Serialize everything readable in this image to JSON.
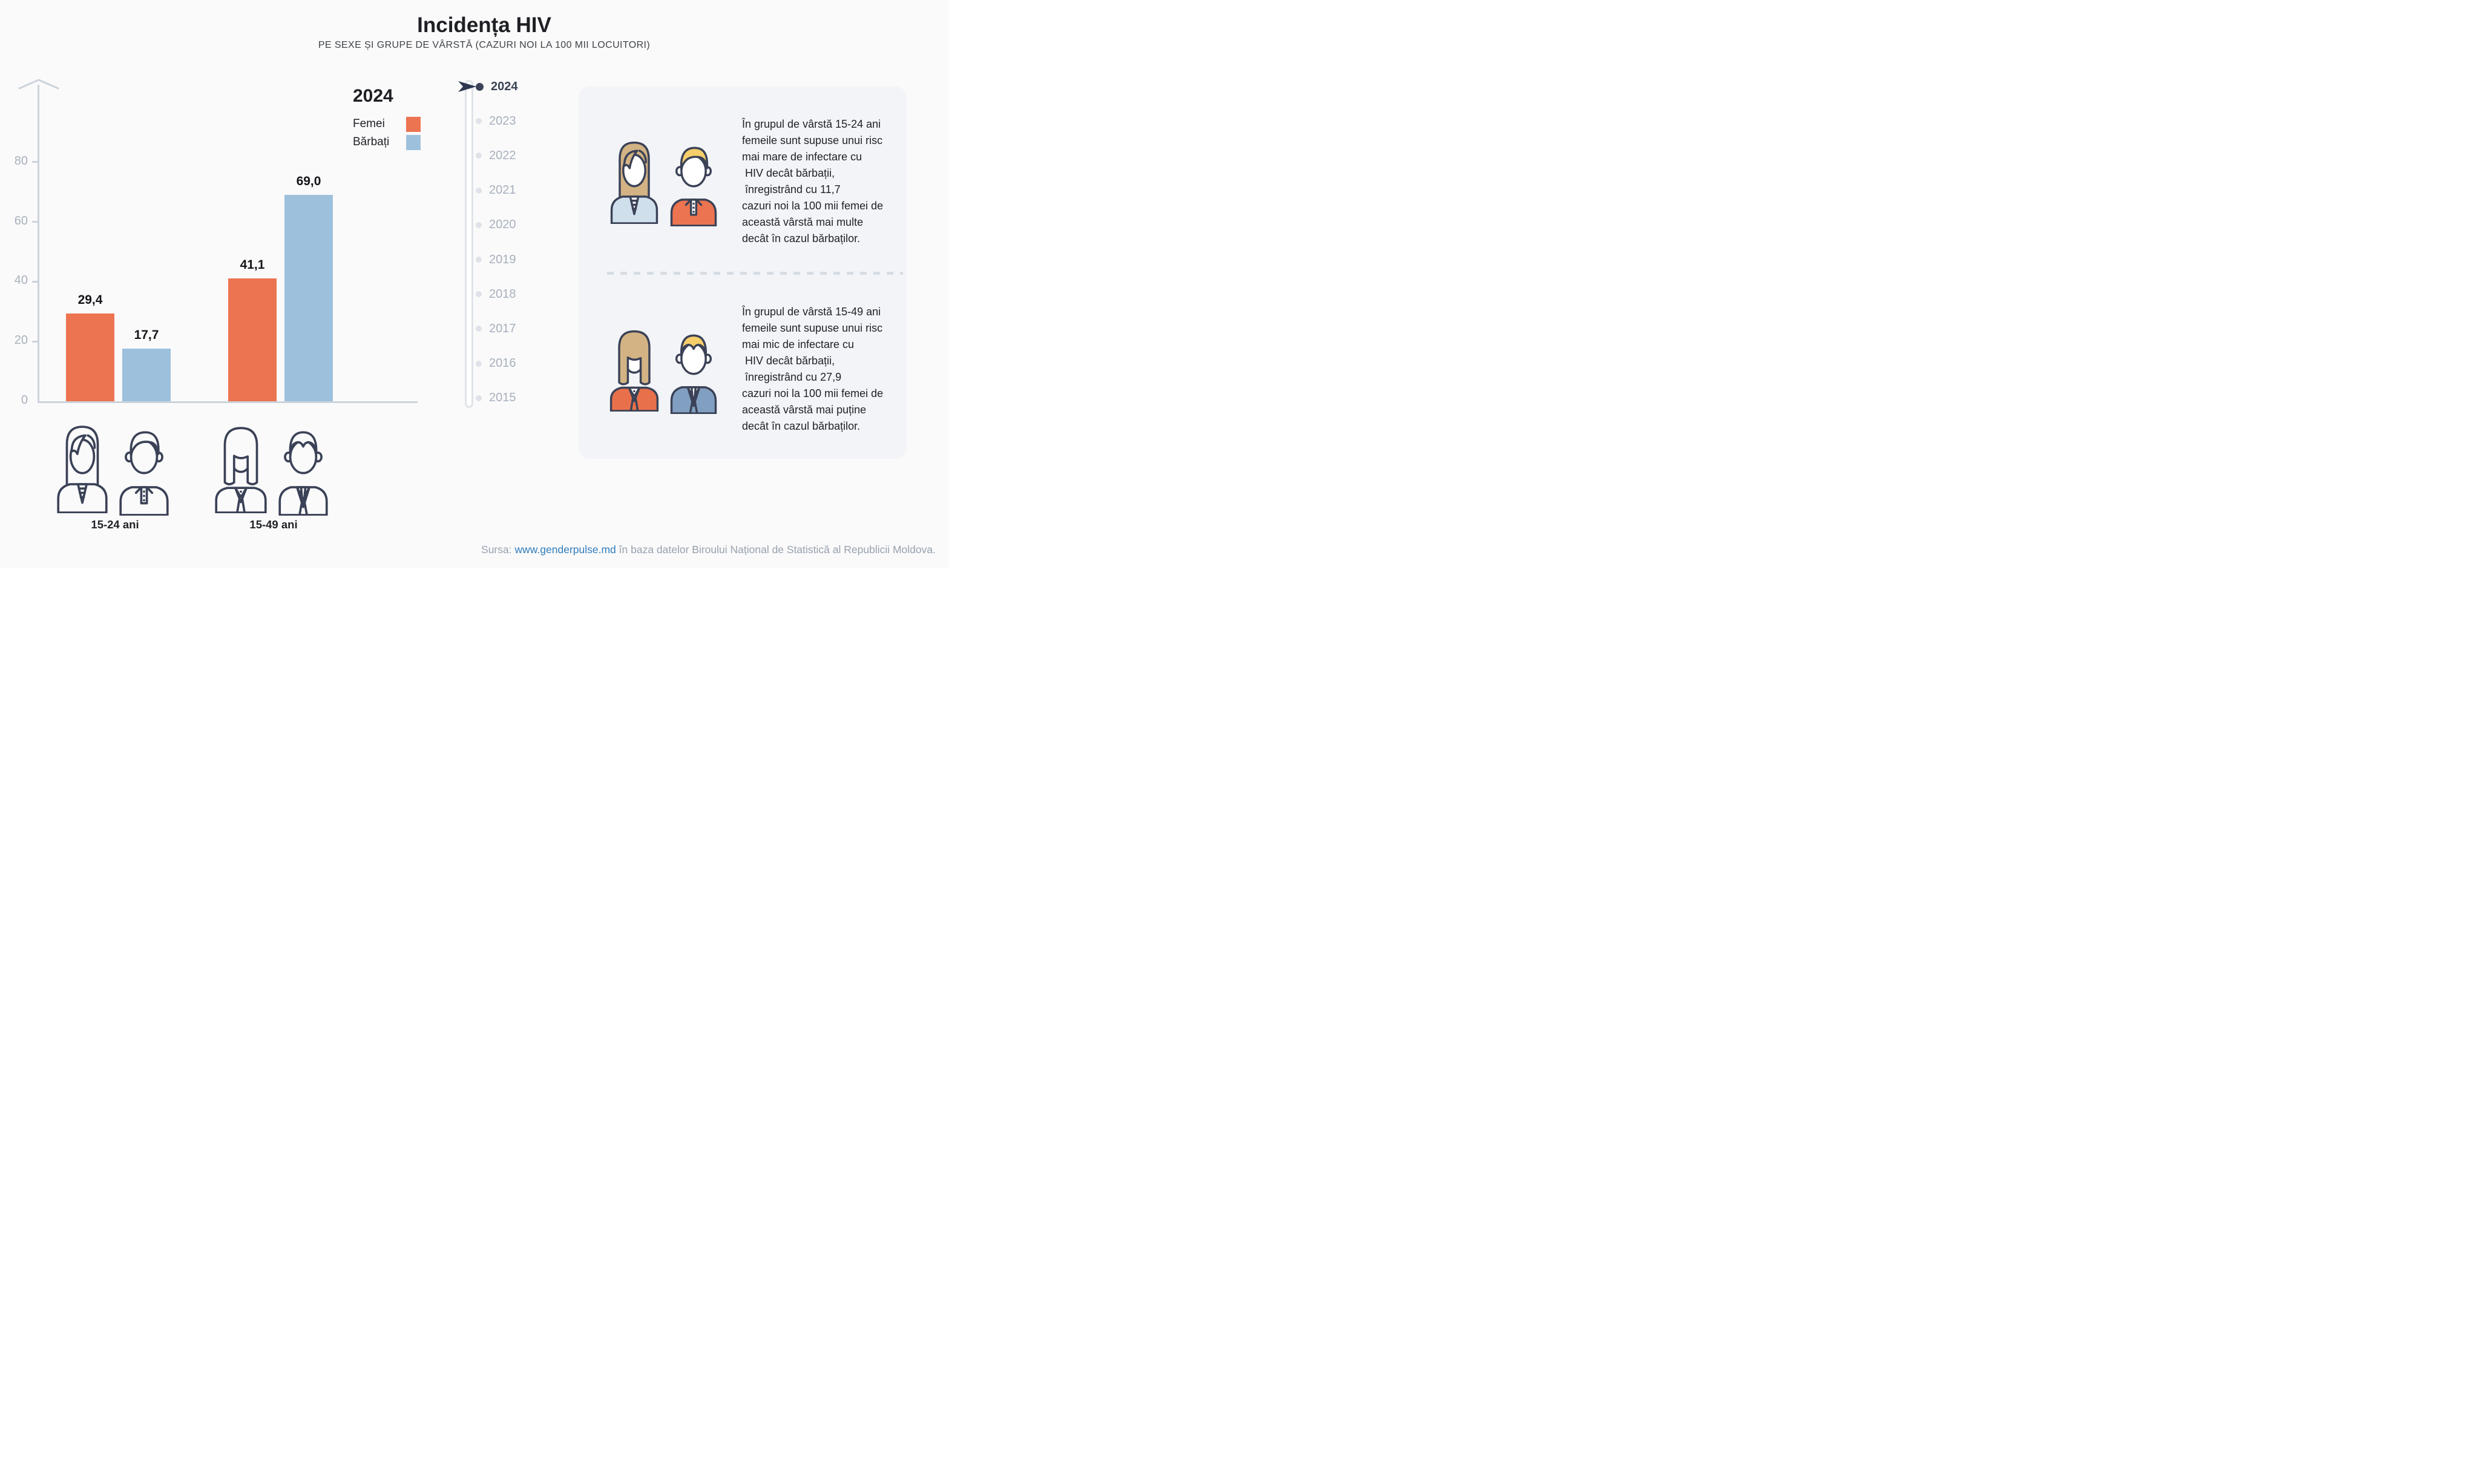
{
  "title": "Incidența HIV",
  "subtitle": "PE SEXE ȘI GRUPE DE VÂRSTĂ (CAZURI NOI LA 100 MII LOCUITORI)",
  "legend": {
    "year": "2024"
  },
  "chart_data": {
    "type": "bar",
    "title": "Incidența HIV",
    "year": "2024",
    "categories": [
      "15-24 ani",
      "15-49 ani"
    ],
    "series": [
      {
        "name": "Femei",
        "color_key": "femei",
        "values": [
          29.4,
          41.1
        ],
        "labels": [
          "29,4",
          "41,1"
        ]
      },
      {
        "name": "Bărbați",
        "color_key": "barbati",
        "values": [
          17.7,
          69.0
        ],
        "labels": [
          "17,7",
          "69,0"
        ]
      }
    ],
    "ylim": [
      0,
      90
    ],
    "yticks": [
      0,
      20,
      40,
      60,
      80
    ],
    "grid": false,
    "legend_position": "top-right"
  },
  "timeline": {
    "years": [
      "2024",
      "2023",
      "2022",
      "2021",
      "2020",
      "2019",
      "2018",
      "2017",
      "2016",
      "2015"
    ],
    "selected": "2024"
  },
  "panels": [
    {
      "text": "În grupul de vârstă 15-24 ani\nfemeile sunt supuse unui risc\nmai mare de infectare cu\n HIV decât bărbații,\n înregistrând cu 11,7\ncazuri noi la 100 mii femei de\naceastă vârstă mai multe\ndecât în cazul bărbaților."
    },
    {
      "text": "În grupul de vârstă 15-49 ani\nfemeile sunt supuse unui risc\nmai mic de infectare cu\n HIV decât bărbații,\n înregistrând cu 27,9\ncazuri noi la 100 mii femei de\naceastă vârstă mai puține\ndecât în cazul bărbaților."
    }
  ],
  "source": {
    "prefix": "Sursa: ",
    "link": "www.genderpulse.md",
    "suffix": " în baza datelor Biroului Național de Statistică al Republicii Moldova."
  },
  "colors": {
    "femei": "#EC7450",
    "barbati": "#9DC1DC",
    "navy": "#3B4257",
    "tan": "#D3B384",
    "yellow": "#F6CE6A",
    "blouse": "#CFDFEC",
    "blazer": "#E8714C",
    "suit": "#81A0C1",
    "bg": "#FAFAFB",
    "panel": "#F2F4F7",
    "axis": "#CCD3DB",
    "tick_text": "#A9B1BC",
    "year_active": "#3A4254",
    "year_inactive": "#A7B0BC",
    "dot_inactive": "#DFE3E9",
    "text_dark": "#1E2024",
    "source_gray": "#97A1AC",
    "link": "#2F7DBB",
    "dash": "#D7DDE5",
    "value_label": "#141519"
  }
}
